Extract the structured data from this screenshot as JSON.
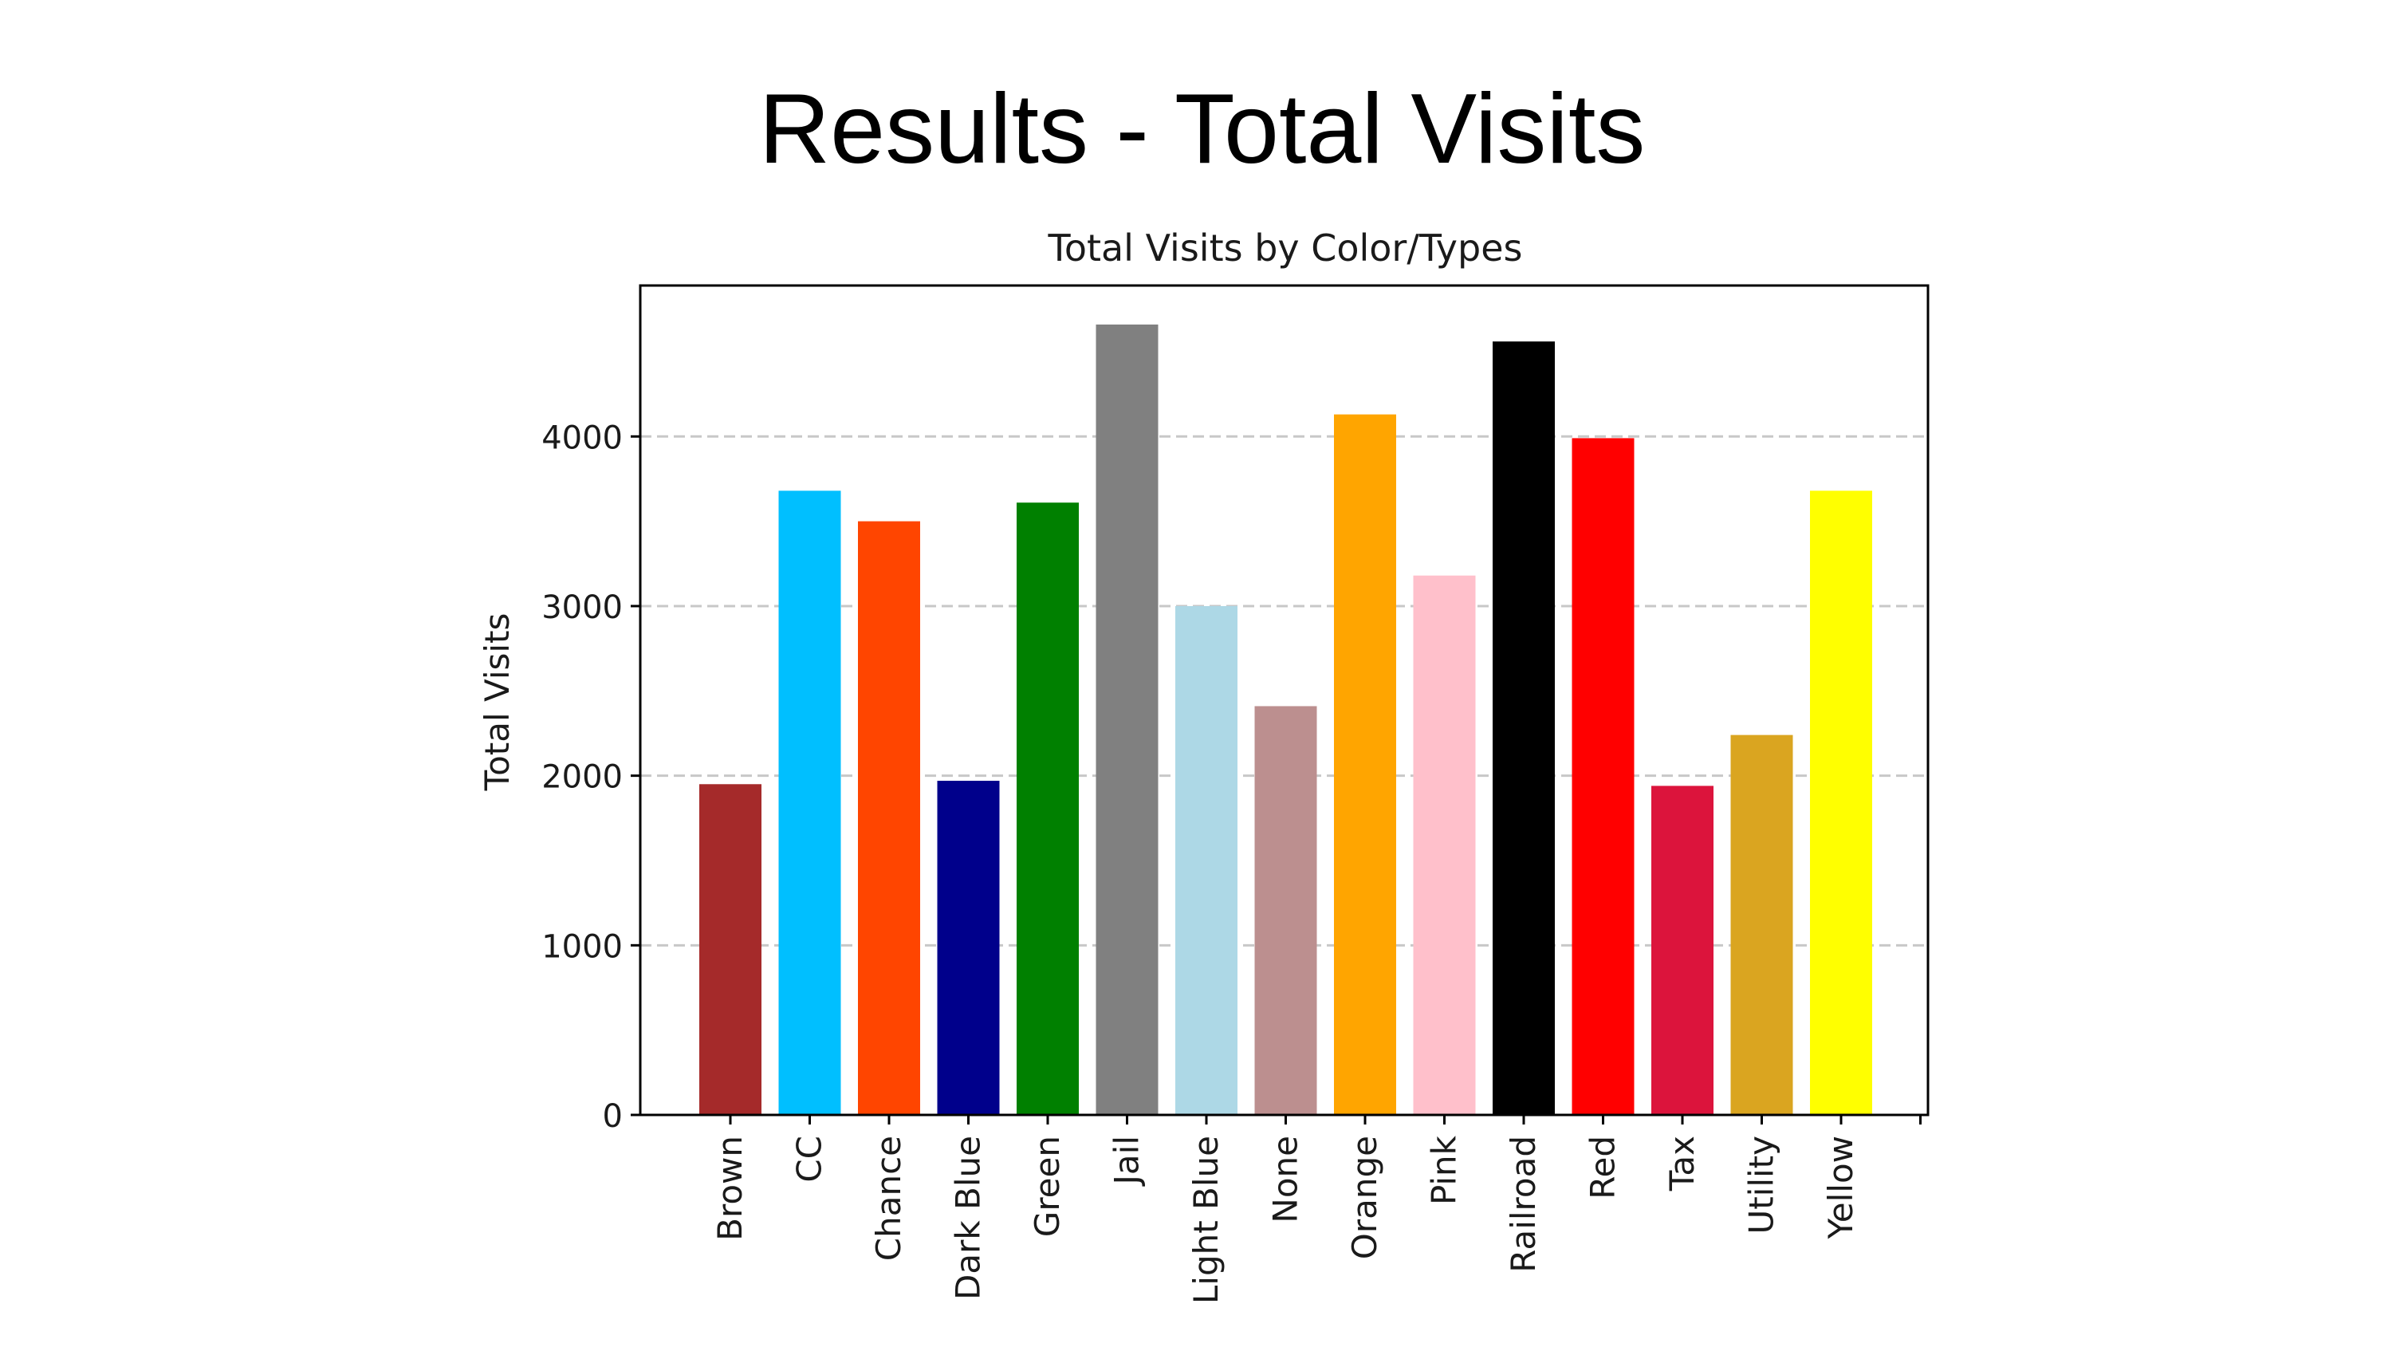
{
  "slide": {
    "title": "Results - Total Visits"
  },
  "chart_data": {
    "type": "bar",
    "title": "Total Visits by Color/Types",
    "xlabel": "",
    "ylabel": "Total Visits",
    "ylim": [
      0,
      4890
    ],
    "yticks": [
      0,
      1000,
      2000,
      3000,
      4000
    ],
    "grid": "y-dashed",
    "categories": [
      "Brown",
      "CC",
      "Chance",
      "Dark Blue",
      "Green",
      "Jail",
      "Light Blue",
      "None",
      "Orange",
      "Pink",
      "Railroad",
      "Red",
      "Tax",
      "Utility",
      "Yellow"
    ],
    "values": [
      1950,
      3680,
      3500,
      1970,
      3610,
      4660,
      3000,
      2410,
      4130,
      3180,
      4560,
      3990,
      1940,
      2240,
      3680
    ],
    "colors": [
      "#a52a2a",
      "#00bfff",
      "#ff4500",
      "#00008b",
      "#008000",
      "#808080",
      "#add8e6",
      "#bc8f8f",
      "#ffa500",
      "#ffc0cb",
      "#000000",
      "#ff0000",
      "#dc143c",
      "#daa520",
      "#ffff00"
    ]
  }
}
